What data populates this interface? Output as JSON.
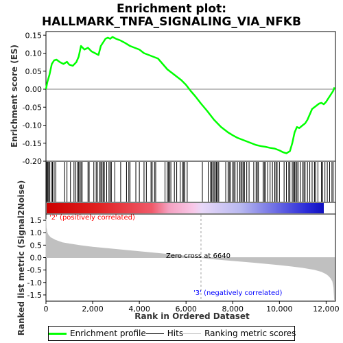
{
  "title": {
    "line1": "Enrichment plot:",
    "line2": "HALLMARK_TNFA_SIGNALING_VIA_NFKB"
  },
  "colors": {
    "es_line": "#00ff00",
    "hit_line": "#000000",
    "metric_fill": "#c0c0c0",
    "positive_text": "#ff0000",
    "negative_text": "#0000ff",
    "grid": "#808080"
  },
  "legend": {
    "items": [
      {
        "label": "Enrichment profile",
        "icon": "green-line"
      },
      {
        "label": "Hits",
        "icon": "black-line"
      },
      {
        "label": "Ranking metric scores",
        "icon": "gray-line"
      }
    ]
  },
  "chart_data": [
    {
      "type": "line",
      "name": "enrichment-profile",
      "ylabel": "Enrichment score (ES)",
      "xlim": [
        0,
        12400
      ],
      "ylim": [
        -0.2,
        0.16
      ],
      "yticks": [
        -0.2,
        -0.15,
        -0.1,
        -0.05,
        0.0,
        0.05,
        0.1,
        0.15
      ],
      "ytick_labels": [
        "-0.20",
        "-0.15",
        "-0.10",
        "-0.05",
        "0.00",
        "0.05",
        "0.10",
        "0.15"
      ],
      "x": [
        0,
        60,
        150,
        250,
        350,
        450,
        600,
        750,
        900,
        1000,
        1150,
        1300,
        1400,
        1500,
        1650,
        1800,
        1950,
        2100,
        2250,
        2350,
        2450,
        2550,
        2650,
        2750,
        2850,
        3000,
        3200,
        3400,
        3600,
        3800,
        4000,
        4200,
        4400,
        4600,
        4800,
        5000,
        5200,
        5400,
        5600,
        5800,
        6000,
        6200,
        6400,
        6640,
        6900,
        7200,
        7500,
        7800,
        8000,
        8200,
        8400,
        8600,
        8800,
        9000,
        9200,
        9400,
        9600,
        9800,
        10000,
        10150,
        10300,
        10450,
        10550,
        10650,
        10750,
        10850,
        11000,
        11100,
        11200,
        11300,
        11400,
        11500,
        11600,
        11700,
        11800,
        11900,
        12000,
        12100,
        12200,
        12300,
        12360
      ],
      "y": [
        0.0,
        0.02,
        0.04,
        0.07,
        0.08,
        0.082,
        0.075,
        0.07,
        0.076,
        0.068,
        0.065,
        0.075,
        0.09,
        0.12,
        0.11,
        0.115,
        0.105,
        0.1,
        0.095,
        0.12,
        0.13,
        0.14,
        0.143,
        0.14,
        0.145,
        0.14,
        0.135,
        0.128,
        0.12,
        0.115,
        0.11,
        0.1,
        0.095,
        0.09,
        0.085,
        0.07,
        0.055,
        0.045,
        0.035,
        0.025,
        0.012,
        -0.005,
        -0.02,
        -0.04,
        -0.06,
        -0.085,
        -0.105,
        -0.12,
        -0.128,
        -0.135,
        -0.14,
        -0.145,
        -0.15,
        -0.155,
        -0.158,
        -0.16,
        -0.163,
        -0.165,
        -0.17,
        -0.175,
        -0.178,
        -0.172,
        -0.15,
        -0.12,
        -0.105,
        -0.108,
        -0.1,
        -0.095,
        -0.085,
        -0.07,
        -0.055,
        -0.05,
        -0.045,
        -0.04,
        -0.038,
        -0.042,
        -0.035,
        -0.025,
        -0.015,
        -0.005,
        0.005
      ]
    },
    {
      "type": "area",
      "name": "ranked-list-metric",
      "xlabel": "Rank in Ordered Dataset",
      "ylabel": "Ranked list metric (Signal2Noise)",
      "xlim": [
        0,
        12400
      ],
      "ylim": [
        -1.75,
        1.75
      ],
      "yticks": [
        -1.5,
        -1.0,
        -0.5,
        0.0,
        0.5,
        1.0,
        1.5
      ],
      "ytick_labels": [
        "-1.5",
        "-1.0",
        "-0.5",
        "0.0",
        "0.5",
        "1.0",
        "1.5"
      ],
      "xticks": [
        0,
        2000,
        4000,
        6000,
        8000,
        10000,
        12000
      ],
      "xtick_labels": [
        "0",
        "2,000",
        "4,000",
        "6,000",
        "8,000",
        "10,000",
        "12,000"
      ],
      "x": [
        0,
        10,
        50,
        100,
        200,
        400,
        700,
        1000,
        1500,
        2000,
        3000,
        4000,
        5000,
        6000,
        6640,
        7000,
        8000,
        9000,
        10000,
        10500,
        11000,
        11500,
        11800,
        12000,
        12100,
        12200,
        12280,
        12330,
        12360
      ],
      "y": [
        1.55,
        1.2,
        1.0,
        0.9,
        0.8,
        0.7,
        0.6,
        0.55,
        0.48,
        0.42,
        0.33,
        0.24,
        0.15,
        0.06,
        0.0,
        -0.04,
        -0.12,
        -0.2,
        -0.29,
        -0.34,
        -0.4,
        -0.48,
        -0.56,
        -0.65,
        -0.72,
        -0.82,
        -0.95,
        -1.2,
        -1.7
      ],
      "annotations": {
        "positive": "'2' (positively correlated)",
        "zero_cross": "Zero cross at 6640",
        "negative": "'3' (negatively correlated)"
      },
      "zero_cross_rank": 6640
    },
    {
      "type": "scatter",
      "name": "hits",
      "x": [
        30,
        70,
        110,
        160,
        220,
        280,
        350,
        420,
        800,
        900,
        1050,
        1200,
        1280,
        1350,
        1400,
        1450,
        1500,
        1550,
        1800,
        1850,
        2050,
        2150,
        2200,
        2300,
        2350,
        2400,
        2450,
        2500,
        2600,
        2700,
        2750,
        2800,
        2950,
        3200,
        3450,
        3550,
        3600,
        3850,
        4000,
        4200,
        4300,
        4500,
        4550,
        4650,
        4700,
        5100,
        5200,
        5250,
        5300,
        5350,
        5500,
        5600,
        5750,
        5850,
        5900,
        5950,
        6050,
        6700,
        6950,
        7050,
        7100,
        7150,
        7200,
        7250,
        7300,
        7350,
        7400,
        7700,
        7800,
        7850,
        7900,
        8000,
        8050,
        8100,
        8200,
        8300,
        8350,
        8400,
        8450,
        8500,
        8600,
        8700,
        8900,
        9000,
        9050,
        9100,
        9300,
        9350,
        9400,
        9500,
        9600,
        9700,
        9800,
        9850,
        9900,
        10000,
        10200,
        10300,
        10400,
        10450,
        10550,
        10600,
        10650,
        10700,
        10750,
        10800,
        10900,
        11000,
        11050,
        11100,
        11200,
        11300,
        11400,
        11500,
        11550,
        11650,
        11800,
        11850,
        11950,
        12050,
        12150,
        12250,
        12300
      ]
    }
  ]
}
